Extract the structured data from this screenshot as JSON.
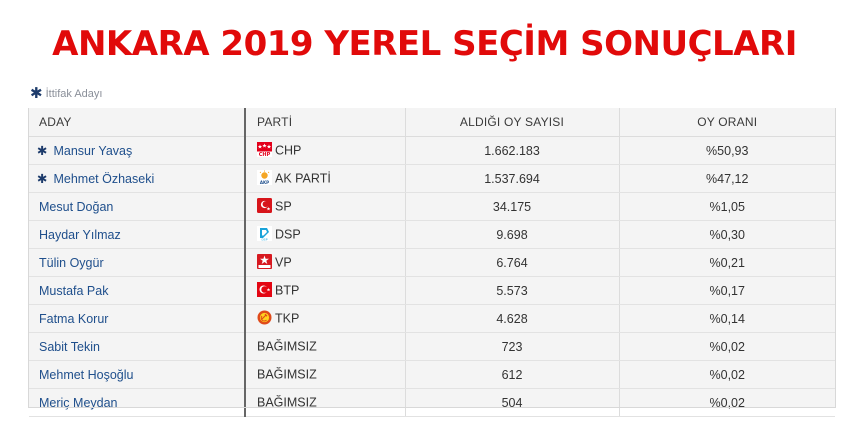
{
  "title": "ANKARA 2019 YEREL SEÇİM SONUÇLARI",
  "legend": {
    "symbol": "✱",
    "label": "İttifak Adayı"
  },
  "table": {
    "headers": [
      "ADAY",
      "PARTİ",
      "ALDIĞI OY SAYISI",
      "OY ORANI"
    ],
    "rows": [
      {
        "candidate": "Mansur Yavaş",
        "alliance": true,
        "party": "CHP",
        "logo": "chp-logo-icon",
        "votes": "1.662.183",
        "pct": "%50,93"
      },
      {
        "candidate": "Mehmet Özhaseki",
        "alliance": true,
        "party": "AK PARTİ",
        "logo": "akp-logo-icon",
        "votes": "1.537.694",
        "pct": "%47,12"
      },
      {
        "candidate": "Mesut Doğan",
        "alliance": false,
        "party": "SP",
        "logo": "sp-logo-icon",
        "votes": "34.175",
        "pct": "%1,05"
      },
      {
        "candidate": "Haydar Yılmaz",
        "alliance": false,
        "party": "DSP",
        "logo": "dsp-logo-icon",
        "votes": "9.698",
        "pct": "%0,30"
      },
      {
        "candidate": "Tülin Oygür",
        "alliance": false,
        "party": "VP",
        "logo": "vp-logo-icon",
        "votes": "6.764",
        "pct": "%0,21"
      },
      {
        "candidate": "Mustafa Pak",
        "alliance": false,
        "party": "BTP",
        "logo": "btp-logo-icon",
        "votes": "5.573",
        "pct": "%0,17"
      },
      {
        "candidate": "Fatma Korur",
        "alliance": false,
        "party": "TKP",
        "logo": "tkp-logo-icon",
        "votes": "4.628",
        "pct": "%0,14"
      },
      {
        "candidate": "Sabit Tekin",
        "alliance": false,
        "party": "BAĞIMSIZ",
        "logo": "",
        "votes": "723",
        "pct": "%0,02"
      },
      {
        "candidate": "Mehmet Hoşoğlu",
        "alliance": false,
        "party": "BAĞIMSIZ",
        "logo": "",
        "votes": "612",
        "pct": "%0,02"
      },
      {
        "candidate": "Meriç Meydan",
        "alliance": false,
        "party": "BAĞIMSIZ",
        "logo": "",
        "votes": "504",
        "pct": "%0,02"
      }
    ]
  },
  "colors": {
    "title": "#e10a0a",
    "candidate_text": "#1f4f8c",
    "chp": "#e3001b",
    "akp": "#f5a623",
    "sp": "#d7141a",
    "dsp": "#1aa3d9",
    "vp": "#d71920",
    "btp": "#e30613",
    "tkp": "#e04a1a"
  }
}
